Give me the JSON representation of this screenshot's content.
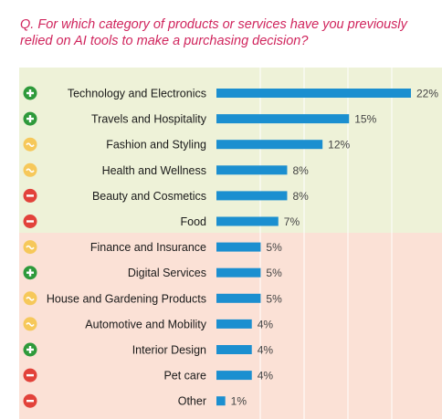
{
  "question": "Q. For which category of products or services have you previously relied on AI tools to make a purchasing decision?",
  "colors": {
    "bar": "#1b8fd0",
    "positive": "#2e9a3b",
    "neutral": "#f6c85a",
    "negative": "#e2423a",
    "question": "#d0255d",
    "grid": "#ffffff"
  },
  "chart_data": {
    "type": "bar",
    "orientation": "horizontal",
    "categories": [
      "Technology and Electronics",
      "Travels and Hospitality",
      "Fashion and Styling",
      "Health and Wellness",
      "Beauty and Cosmetics",
      "Food",
      "Finance and Insurance",
      "Digital Services",
      "House and Gardening Products",
      "Automotive and Mobility",
      "Interior Design",
      "Pet care",
      "Other"
    ],
    "values": [
      22,
      15,
      12,
      8,
      8,
      7,
      5,
      5,
      5,
      4,
      4,
      4,
      1
    ],
    "value_labels": [
      "22%",
      "15%",
      "12%",
      "8%",
      "8%",
      "7%",
      "5%",
      "5%",
      "5%",
      "4%",
      "4%",
      "4%",
      "1%"
    ],
    "sentiment_icons": [
      "plus-icon",
      "plus-icon",
      "neutral-icon",
      "neutral-icon",
      "minus-icon",
      "minus-icon",
      "neutral-icon",
      "plus-icon",
      "neutral-icon",
      "neutral-icon",
      "plus-icon",
      "minus-icon",
      "minus-icon"
    ],
    "xlim": [
      0,
      22
    ],
    "grid": true
  }
}
